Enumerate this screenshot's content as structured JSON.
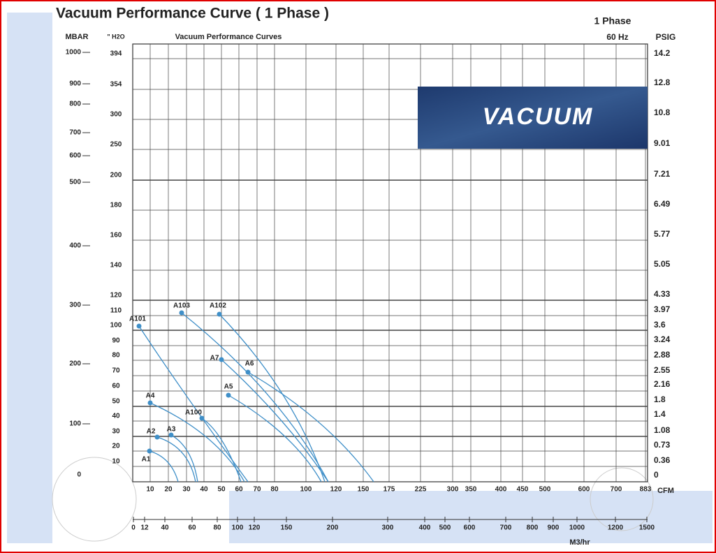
{
  "header": {
    "title": "Vacuum Performance Curve ( 1 Phase )",
    "phase": "1 Phase",
    "frequency": "60 Hz"
  },
  "chart": {
    "title": "Vacuum Performance Curves",
    "left_unit": "MBAR",
    "h2o_unit": "\" H2O",
    "right_unit": "PSIG",
    "cfm_unit": "CFM",
    "m3_unit": "M3/hr",
    "banner": "VACUUM",
    "mbar_labels": [
      "1000",
      "900",
      "800",
      "700",
      "600",
      "500",
      "400",
      "300",
      "200",
      "100",
      "0"
    ],
    "h2o_labels": [
      "394",
      "354",
      "300",
      "250",
      "200",
      "180",
      "160",
      "140",
      "120",
      "110",
      "100",
      "90",
      "80",
      "70",
      "60",
      "50",
      "40",
      "30",
      "20",
      "10"
    ],
    "psig_labels": [
      "14.2",
      "12.8",
      "10.8",
      "9.01",
      "7.21",
      "6.49",
      "5.77",
      "5.05",
      "4.33",
      "3.97",
      "3.6",
      "3.24",
      "2.88",
      "2.55",
      "2.16",
      "1.8",
      "1.4",
      "1.08",
      "0.73",
      "0.36",
      "0"
    ],
    "cfm_labels": [
      "10",
      "20",
      "30",
      "40",
      "50",
      "60",
      "70",
      "80",
      "100",
      "120",
      "150",
      "175",
      "225",
      "300",
      "350",
      "400",
      "450",
      "500",
      "600",
      "700",
      "883"
    ],
    "m3_labels": [
      "0",
      "12",
      "40",
      "60",
      "80",
      "100",
      "120",
      "150",
      "200",
      "300",
      "400",
      "500",
      "600",
      "700",
      "800",
      "900",
      "1000",
      "1200",
      "1500"
    ],
    "curves": [
      "A101",
      "A103",
      "A102",
      "A7",
      "A6",
      "A5",
      "A4",
      "A100",
      "A2",
      "A3",
      "A1"
    ]
  }
}
